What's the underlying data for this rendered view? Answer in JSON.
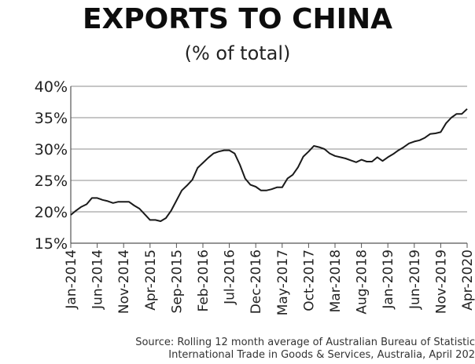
{
  "chart_data": {
    "type": "line",
    "title": "EXPORTS TO CHINA",
    "subtitle": "(% of total)",
    "ylim": [
      15,
      40
    ],
    "yticks": [
      "15%",
      "20%",
      "25%",
      "30%",
      "35%",
      "40%"
    ],
    "ytick_values": [
      15,
      20,
      25,
      30,
      35,
      40
    ],
    "grid": "horizontal",
    "xlim": [
      "Jan-2014",
      "Apr-2020"
    ],
    "xtick_labels": [
      "Jan-2014",
      "Jun-2014",
      "Nov-2014",
      "Apr-2015",
      "Sep-2015",
      "Feb-2016",
      "Jul-2016",
      "Dec-2016",
      "May-2017",
      "Oct-2017",
      "Mar-2018",
      "Aug-2018",
      "Jan-2019",
      "Jun-2019",
      "Nov-2019",
      "Apr-2020"
    ],
    "series": [
      {
        "color": "#1a1a1a",
        "points": [
          [
            "2014-01",
            19.5
          ],
          [
            "2014-02",
            20.2
          ],
          [
            "2014-03",
            20.8
          ],
          [
            "2014-04",
            21.2
          ],
          [
            "2014-05",
            22.2
          ],
          [
            "2014-06",
            22.2
          ],
          [
            "2014-07",
            21.9
          ],
          [
            "2014-08",
            21.7
          ],
          [
            "2014-09",
            21.4
          ],
          [
            "2014-10",
            21.6
          ],
          [
            "2014-11",
            21.6
          ],
          [
            "2014-12",
            21.6
          ],
          [
            "2015-01",
            21.0
          ],
          [
            "2015-02",
            20.5
          ],
          [
            "2015-03",
            19.6
          ],
          [
            "2015-04",
            18.7
          ],
          [
            "2015-05",
            18.7
          ],
          [
            "2015-06",
            18.5
          ],
          [
            "2015-07",
            19.0
          ],
          [
            "2015-08",
            20.2
          ],
          [
            "2015-09",
            21.8
          ],
          [
            "2015-10",
            23.4
          ],
          [
            "2015-11",
            24.2
          ],
          [
            "2015-12",
            25.1
          ],
          [
            "2016-01",
            27.0
          ],
          [
            "2016-02",
            27.8
          ],
          [
            "2016-03",
            28.6
          ],
          [
            "2016-04",
            29.3
          ],
          [
            "2016-05",
            29.6
          ],
          [
            "2016-06",
            29.8
          ],
          [
            "2016-07",
            29.8
          ],
          [
            "2016-08",
            29.3
          ],
          [
            "2016-09",
            27.5
          ],
          [
            "2016-10",
            25.3
          ],
          [
            "2016-11",
            24.3
          ],
          [
            "2016-12",
            24.0
          ],
          [
            "2017-01",
            23.4
          ],
          [
            "2017-02",
            23.4
          ],
          [
            "2017-03",
            23.6
          ],
          [
            "2017-04",
            23.9
          ],
          [
            "2017-05",
            23.9
          ],
          [
            "2017-06",
            25.3
          ],
          [
            "2017-07",
            25.9
          ],
          [
            "2017-08",
            27.1
          ],
          [
            "2017-09",
            28.8
          ],
          [
            "2017-10",
            29.6
          ],
          [
            "2017-11",
            30.5
          ],
          [
            "2017-12",
            30.3
          ],
          [
            "2018-01",
            30.0
          ],
          [
            "2018-02",
            29.3
          ],
          [
            "2018-03",
            28.9
          ],
          [
            "2018-04",
            28.7
          ],
          [
            "2018-05",
            28.5
          ],
          [
            "2018-06",
            28.2
          ],
          [
            "2018-07",
            27.9
          ],
          [
            "2018-08",
            28.3
          ],
          [
            "2018-09",
            28.0
          ],
          [
            "2018-10",
            28.0
          ],
          [
            "2018-11",
            28.7
          ],
          [
            "2018-12",
            28.1
          ],
          [
            "2019-01",
            28.7
          ],
          [
            "2019-02",
            29.2
          ],
          [
            "2019-03",
            29.8
          ],
          [
            "2019-04",
            30.3
          ],
          [
            "2019-05",
            30.9
          ],
          [
            "2019-06",
            31.2
          ],
          [
            "2019-07",
            31.4
          ],
          [
            "2019-08",
            31.8
          ],
          [
            "2019-09",
            32.4
          ],
          [
            "2019-10",
            32.5
          ],
          [
            "2019-11",
            32.7
          ],
          [
            "2019-12",
            34.1
          ],
          [
            "2020-01",
            35.0
          ],
          [
            "2020-02",
            35.6
          ],
          [
            "2020-03",
            35.6
          ],
          [
            "2020-04",
            36.4
          ]
        ]
      }
    ]
  },
  "source": {
    "line1": "Source: Rolling 12 month average of Australian Bureau of Statistic",
    "line2": "International Trade in Goods & Services, Australia, April 202"
  }
}
